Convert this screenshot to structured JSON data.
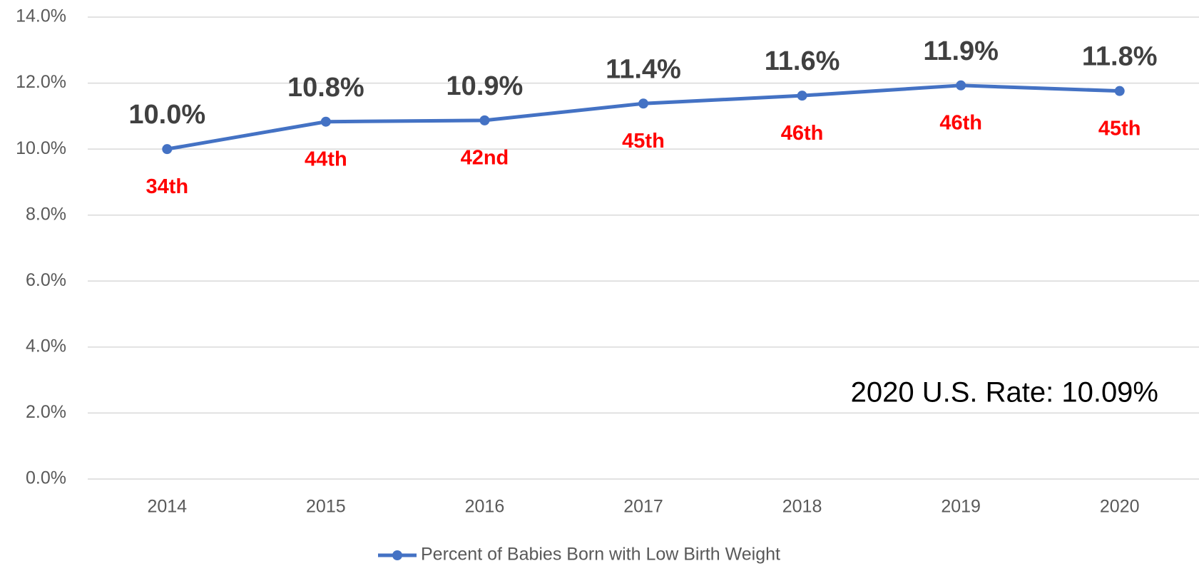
{
  "chart_data": {
    "type": "line",
    "categories": [
      "2014",
      "2015",
      "2016",
      "2017",
      "2018",
      "2019",
      "2020"
    ],
    "series": [
      {
        "name": "Percent of Babies Born with Low Birth Weight",
        "color": "#4472c4",
        "values": [
          10.0,
          10.83,
          10.87,
          11.38,
          11.62,
          11.93,
          11.76
        ],
        "value_labels": [
          "10.0%",
          "10.8%",
          "10.9%",
          "11.4%",
          "11.6%",
          "11.9%",
          "11.8%"
        ],
        "rank_labels": [
          "34th",
          "44th",
          "42nd",
          "45th",
          "46th",
          "46th",
          "45th"
        ]
      }
    ],
    "ylim": [
      0,
      14
    ],
    "yticks": [
      {
        "value": 0,
        "label": "0.0%"
      },
      {
        "value": 2,
        "label": "2.0%"
      },
      {
        "value": 4,
        "label": "4.0%"
      },
      {
        "value": 6,
        "label": "6.0%"
      },
      {
        "value": 8,
        "label": "8.0%"
      },
      {
        "value": 10,
        "label": "10.0%"
      },
      {
        "value": 12,
        "label": "12.0%"
      },
      {
        "value": 14,
        "label": "14.0%"
      }
    ],
    "grid": true,
    "legend": "bottom",
    "annotation": "2020 U.S. Rate: 10.09%"
  }
}
